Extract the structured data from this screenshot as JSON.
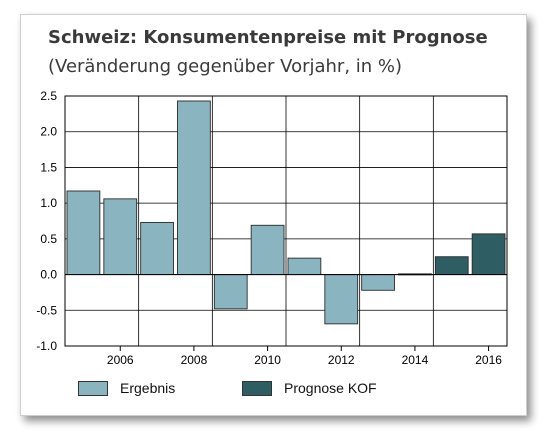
{
  "chart_data": {
    "type": "bar",
    "title": "Schweiz: Konsumentenpreise mit Prognose",
    "subtitle": "(Veränderung gegenüber Vorjahr, in %)",
    "xlabel": "",
    "ylabel": "",
    "ylim": [
      -1.0,
      2.5
    ],
    "yticks": [
      "2.5",
      "2.0",
      "1.5",
      "1.0",
      "0.5",
      "0.0",
      "-0.5",
      "-1.0"
    ],
    "ytick_values": [
      2.5,
      2.0,
      1.5,
      1.0,
      0.5,
      0.0,
      -0.5,
      -1.0
    ],
    "categories": [
      "2005",
      "2006",
      "2007",
      "2008",
      "2009",
      "2010",
      "2011",
      "2012",
      "2013",
      "2014",
      "2015",
      "2016"
    ],
    "xtick_labels": [
      "",
      "2006",
      "",
      "2008",
      "",
      "2010",
      "",
      "2012",
      "",
      "2014",
      "",
      "2016"
    ],
    "values": [
      1.17,
      1.06,
      0.73,
      2.43,
      -0.48,
      0.69,
      0.23,
      -0.69,
      -0.22,
      0.01,
      0.25,
      0.57
    ],
    "series_type": [
      "ergebnis",
      "ergebnis",
      "ergebnis",
      "ergebnis",
      "ergebnis",
      "ergebnis",
      "ergebnis",
      "ergebnis",
      "ergebnis",
      "ergebnis",
      "prognose",
      "prognose"
    ],
    "grid": true,
    "legend_position": "bottom",
    "legend": [
      {
        "key": "ergebnis",
        "label": "Ergebnis",
        "color": "#8ab4c0"
      },
      {
        "key": "prognose",
        "label": "Prognose KOF",
        "color": "#2e5d63"
      }
    ]
  }
}
